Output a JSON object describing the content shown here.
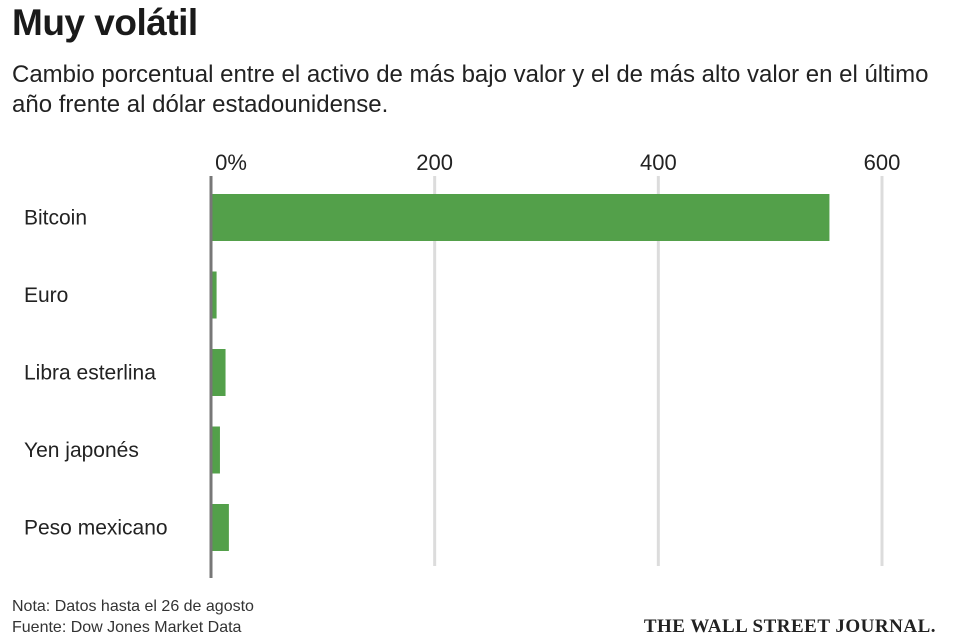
{
  "chart_data": {
    "type": "bar",
    "orientation": "horizontal",
    "title": "Muy volátil",
    "subtitle": "Cambio porcentual entre el activo de más bajo valor y el de más alto valor en el último año frente al dólar estadounidense.",
    "categories": [
      "Bitcoin",
      "Euro",
      "Libra esterlina",
      "Yen japonés",
      "Peso mexicano"
    ],
    "values": [
      553,
      5,
      13,
      8,
      16
    ],
    "xlim": [
      0,
      600
    ],
    "ticks": [
      0,
      200,
      400,
      600
    ],
    "tick_labels": [
      "0%",
      "200",
      "400",
      "600"
    ],
    "grid": true,
    "bar_color": "#53a04a",
    "note": "Nota: Datos hasta el 26 de agosto",
    "source": "Fuente: Dow Jones Market Data",
    "logo": "THE WALL STREET JOURNAL."
  }
}
